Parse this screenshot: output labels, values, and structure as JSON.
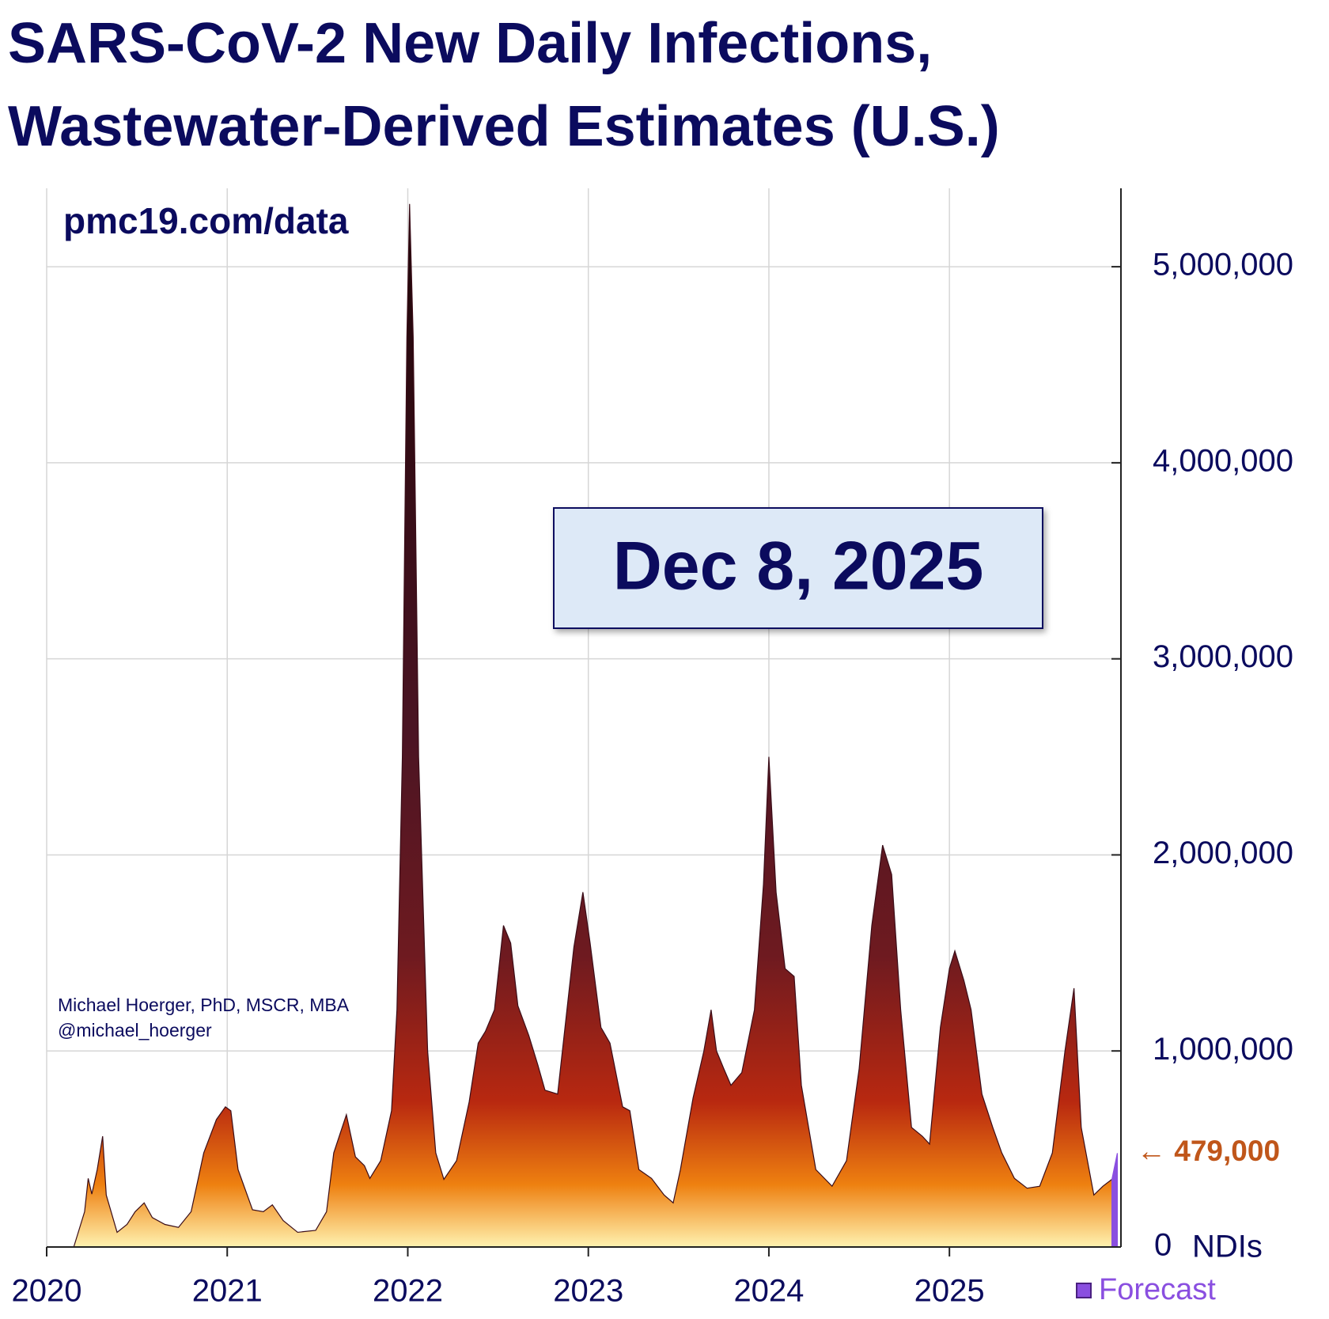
{
  "chart_data": {
    "type": "area",
    "title": [
      "SARS-CoV-2 New Daily Infections,",
      "Wastewater-Derived Estimates (U.S.)"
    ],
    "subtitle": "pmc19.com/data",
    "date_box": "Dec 8, 2025",
    "credit": [
      "Michael Hoerger, PhD, MSCR, MBA",
      "@michael_hoerger"
    ],
    "y_axis_label": "NDIs",
    "annotations": [
      {
        "text": "← 479,000",
        "value": 479000,
        "color": "#c0561a"
      }
    ],
    "xlim": [
      2020,
      2025.95
    ],
    "xticks": [
      2020,
      2021,
      2022,
      2023,
      2024,
      2025
    ],
    "ylim": [
      0,
      5400000
    ],
    "yticks": [
      {
        "value": 0,
        "label": "0"
      },
      {
        "value": 1000000,
        "label": "1,000,000"
      },
      {
        "value": 2000000,
        "label": "2,000,000"
      },
      {
        "value": 3000000,
        "label": "3,000,000"
      },
      {
        "value": 4000000,
        "label": "4,000,000"
      },
      {
        "value": 5000000,
        "label": "5,000,000"
      }
    ],
    "grid": true,
    "legend": "bottom-right",
    "series": [
      {
        "color": "#3a0d18",
        "x": [
          2020.15,
          2020.21,
          2020.23,
          2020.25,
          2020.28,
          2020.31,
          2020.33,
          2020.39,
          2020.445,
          2020.49,
          2020.54,
          2020.585,
          2020.655,
          2020.73,
          2020.8,
          2020.87,
          2020.94,
          2020.99,
          2021.02,
          2021.06,
          2021.14,
          2021.2,
          2021.25,
          2021.31,
          2021.39,
          2021.49,
          2021.55,
          2021.59,
          2021.66,
          2021.71,
          2021.76,
          2021.79,
          2021.85,
          2021.91,
          2021.94,
          2021.97,
          2021.995,
          2022.01,
          2022.03,
          2022.06,
          2022.11,
          2022.155,
          2022.2,
          2022.27,
          2022.34,
          2022.39,
          2022.43,
          2022.48,
          2022.53,
          2022.57,
          2022.61,
          2022.67,
          2022.72,
          2022.76,
          2022.83,
          2022.92,
          2022.97,
          2023.01,
          2023.07,
          2023.12,
          2023.19,
          2023.23,
          2023.28,
          2023.35,
          2023.42,
          2023.47,
          2023.51,
          2023.58,
          2023.64,
          2023.68,
          2023.71,
          2023.75,
          2023.79,
          2023.85,
          2023.92,
          2023.97,
          2024.0,
          2024.04,
          2024.09,
          2024.14,
          2024.18,
          2024.26,
          2024.35,
          2024.43,
          2024.5,
          2024.57,
          2024.63,
          2024.68,
          2024.73,
          2024.79,
          2024.85,
          2024.89,
          2024.95,
          2025.0,
          2025.03,
          2025.08,
          2025.12,
          2025.18,
          2025.24,
          2025.29,
          2025.36,
          2025.43,
          2025.5,
          2025.57,
          2025.64,
          2025.69,
          2025.73,
          2025.8,
          2025.85,
          2025.9
        ],
        "values": [
          0,
          180000,
          350000,
          270000,
          395000,
          565000,
          265000,
          75000,
          115000,
          180000,
          225000,
          150000,
          115000,
          100000,
          180000,
          480000,
          650000,
          715000,
          695000,
          395000,
          190000,
          180000,
          215000,
          135000,
          75000,
          85000,
          180000,
          480000,
          675000,
          460000,
          415000,
          350000,
          440000,
          695000,
          1210000,
          2500000,
          4640000,
          5320000,
          4640000,
          2500000,
          1000000,
          480000,
          345000,
          440000,
          740000,
          1040000,
          1100000,
          1210000,
          1640000,
          1550000,
          1230000,
          1080000,
          930000,
          800000,
          780000,
          1530000,
          1810000,
          1550000,
          1120000,
          1040000,
          715000,
          695000,
          395000,
          350000,
          265000,
          225000,
          395000,
          760000,
          1000000,
          1210000,
          1000000,
          910000,
          825000,
          890000,
          1210000,
          1850000,
          2500000,
          1810000,
          1420000,
          1380000,
          825000,
          395000,
          310000,
          440000,
          910000,
          1640000,
          2050000,
          1900000,
          1210000,
          610000,
          565000,
          525000,
          1120000,
          1420000,
          1510000,
          1360000,
          1210000,
          780000,
          610000,
          480000,
          350000,
          300000,
          310000,
          480000,
          1000000,
          1320000,
          610000,
          265000,
          310000,
          345000
        ]
      },
      {
        "name": "Forecast",
        "color": "#8a4fe0",
        "x": [
          2025.9,
          2025.93
        ],
        "values": [
          345000,
          479000
        ]
      }
    ]
  }
}
